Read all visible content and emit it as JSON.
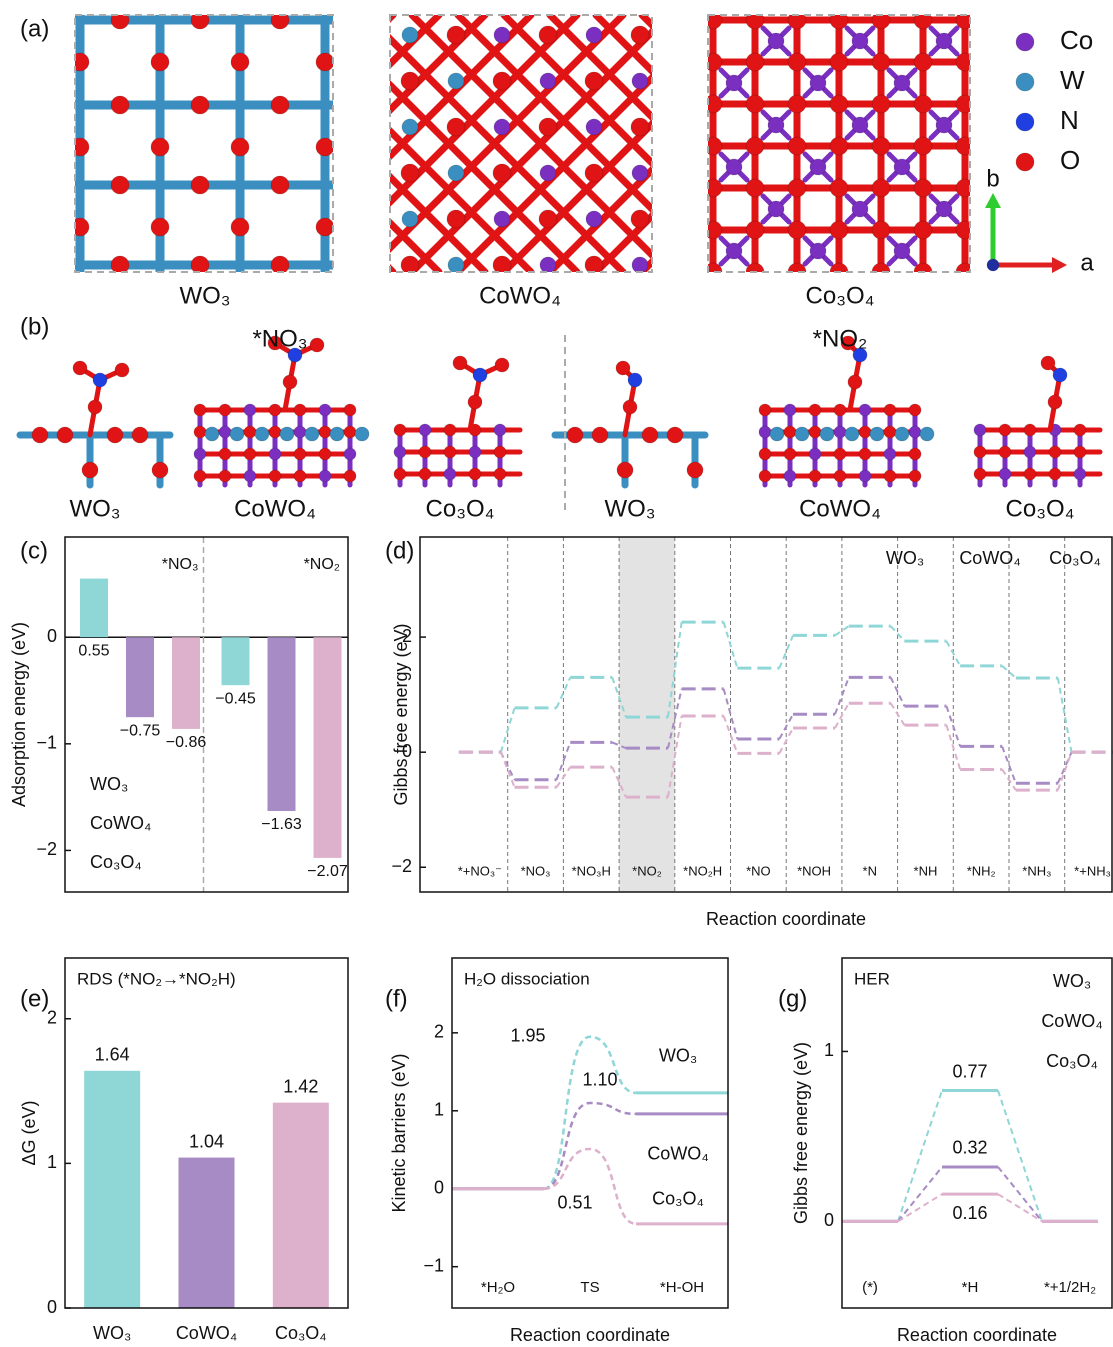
{
  "structures": {
    "panel_a": "(a)",
    "a_labels": [
      "WO₃",
      "CoWO₄",
      "Co₃O₄"
    ],
    "elements": [
      {
        "name": "Co",
        "color": "#7a2fc0"
      },
      {
        "name": "W",
        "color": "#3a8fc0"
      },
      {
        "name": "N",
        "color": "#1f3fe0"
      },
      {
        "name": "O",
        "color": "#e01414"
      }
    ],
    "axes": [
      "b",
      "a"
    ],
    "panel_b": "(b)",
    "adsorbates": [
      "*NO₃",
      "*NO₂"
    ],
    "b_labels": [
      "WO₃",
      "CoWO₄",
      "Co₃O₄",
      "WO₃",
      "CoWO₄",
      "Co₃O₄"
    ]
  },
  "chart_data": [
    {
      "type": "bar",
      "panel": "(c)",
      "ylabel": "Adsorption energy (eV)",
      "categories": [
        "*NO₃",
        "*NO₂"
      ],
      "series": [
        {
          "name": "WO₃",
          "color": "#8fd6d6",
          "values": [
            0.55,
            -0.45
          ],
          "value_labels": [
            "0.55",
            "−0.45"
          ]
        },
        {
          "name": "CoWO₄",
          "color": "#a78bc4",
          "values": [
            -0.75,
            -1.63
          ],
          "value_labels": [
            "−0.75",
            "−1.63"
          ]
        },
        {
          "name": "Co₃O₄",
          "color": "#ddb0cb",
          "values": [
            -0.86,
            -2.07
          ],
          "value_labels": [
            "−0.86",
            "−2.07"
          ]
        }
      ],
      "ylim": [
        -2.39,
        0.94
      ],
      "yticks": [
        {
          "value": -2,
          "label": "−2"
        },
        {
          "value": -1,
          "label": "−1"
        },
        0
      ],
      "legend": "lower left"
    },
    {
      "type": "profile",
      "panel": "(d)",
      "xlabel": "Reaction coordinate",
      "ylabel": "Gibbs free energy (eV)",
      "categories": [
        "*+NO₃⁻",
        "*NO₃",
        "*NO₃H",
        "*NO₂",
        "*NO₂H",
        "*NO",
        "*NOH",
        "*N",
        "*NH",
        "*NH₂",
        "*NH₃",
        "*+NH₃"
      ],
      "highlight": 3,
      "dividers": true,
      "level_style": "dashed",
      "series": [
        {
          "name": "WO₃",
          "color": "#8fd6d6",
          "values": [
            0,
            0.77,
            1.3,
            0.61,
            2.26,
            1.46,
            2.03,
            2.19,
            1.93,
            1.5,
            1.29,
            0
          ]
        },
        {
          "name": "CoWO₄",
          "color": "#a78bc4",
          "values": [
            0,
            -0.48,
            0.17,
            0.07,
            1.1,
            0.23,
            0.66,
            1.3,
            0.8,
            0.1,
            -0.54,
            0
          ]
        },
        {
          "name": "Co₃O₄",
          "color": "#ddb0cb",
          "values": [
            0,
            -0.61,
            -0.26,
            -0.78,
            0.63,
            -0.02,
            0.42,
            0.85,
            0.47,
            -0.3,
            -0.66,
            0
          ]
        }
      ],
      "ylim": [
        -2.43,
        3.74
      ],
      "yticks": [
        {
          "value": -2,
          "label": "−2"
        },
        0,
        2
      ],
      "legend": "upper right"
    },
    {
      "type": "bar",
      "panel": "(e)",
      "title": "RDS (*NO₂→*NO₂H)",
      "ylabel": "ΔG (eV)",
      "categories": [
        "WO₃",
        "CoWO₄",
        "Co₃O₄"
      ],
      "values": [
        1.64,
        1.04,
        1.42
      ],
      "colors": [
        "#8fd6d6",
        "#a78bc4",
        "#ddb0cb"
      ],
      "ylim": [
        0,
        2.42
      ],
      "yticks": [
        0,
        1,
        2
      ]
    },
    {
      "type": "profile",
      "panel": "(f)",
      "title": "H₂O dissociation",
      "xlabel": "Reaction coordinate",
      "ylabel": "Kinetic barriers (eV)",
      "categories": [
        "*H₂O",
        "TS",
        "*H-OH"
      ],
      "transition_state": 1,
      "series": [
        {
          "name": "WO₃",
          "color": "#8fd6d6",
          "values": [
            0,
            1.95,
            1.23
          ],
          "value_labels": [
            null,
            "1.95",
            null
          ]
        },
        {
          "name": "CoWO₄",
          "color": "#a78bc4",
          "values": [
            0,
            1.1,
            0.96
          ],
          "value_labels": [
            null,
            "1.10",
            null
          ]
        },
        {
          "name": "Co₃O₄",
          "color": "#ddb0cb",
          "values": [
            0,
            0.51,
            -0.45
          ],
          "value_labels": [
            null,
            "0.51",
            null
          ]
        }
      ],
      "ylim": [
        -1.53,
        2.96
      ],
      "yticks": [
        {
          "value": -1,
          "label": "−1"
        },
        0,
        1,
        2
      ],
      "legend": "right"
    },
    {
      "type": "profile",
      "panel": "(g)",
      "title": "HER",
      "xlabel": "Reaction coordinate",
      "ylabel": "Gibbs free energy (eV)",
      "categories": [
        "(*)",
        "*H",
        "*+1/2H₂"
      ],
      "series": [
        {
          "name": "WO₃",
          "color": "#8fd6d6",
          "values": [
            0,
            0.77,
            0
          ],
          "value_labels": [
            null,
            "0.77",
            null
          ]
        },
        {
          "name": "CoWO₄",
          "color": "#a78bc4",
          "values": [
            0,
            0.32,
            0
          ],
          "value_labels": [
            null,
            "0.32",
            null
          ]
        },
        {
          "name": "Co₃O₄",
          "color": "#ddb0cb",
          "values": [
            0,
            0.16,
            0
          ],
          "value_labels": [
            null,
            "0.16",
            null
          ]
        }
      ],
      "ylim": [
        -0.51,
        1.55
      ],
      "yticks": [
        0,
        1
      ],
      "legend": "upper right"
    }
  ]
}
